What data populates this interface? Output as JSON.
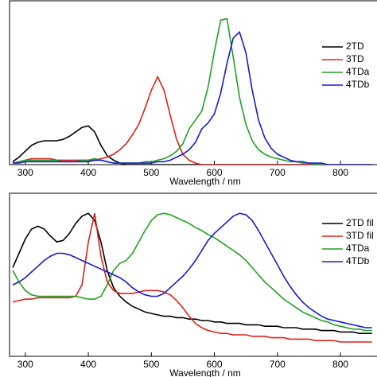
{
  "chart_data": [
    {
      "type": "line",
      "xlabel": "Wavelength / nm",
      "xlim": [
        275,
        858
      ],
      "ylim": [
        0,
        1.1
      ],
      "xticks": [
        300,
        400,
        500,
        600,
        700,
        800
      ],
      "legend": "upper right",
      "x": [
        280,
        290,
        300,
        310,
        320,
        330,
        340,
        350,
        360,
        370,
        380,
        390,
        400,
        410,
        420,
        430,
        440,
        450,
        460,
        470,
        480,
        490,
        500,
        510,
        520,
        530,
        540,
        550,
        560,
        570,
        580,
        590,
        600,
        610,
        620,
        630,
        640,
        650,
        660,
        670,
        680,
        690,
        700,
        710,
        720,
        730,
        740,
        750,
        760,
        770,
        780,
        790,
        800,
        810,
        820,
        830,
        840,
        850
      ],
      "series": [
        {
          "name": "2TD",
          "color": "#000000",
          "values": [
            0.02,
            0.05,
            0.09,
            0.13,
            0.15,
            0.16,
            0.16,
            0.16,
            0.17,
            0.19,
            0.22,
            0.25,
            0.26,
            0.22,
            0.13,
            0.06,
            0.03,
            0.01,
            0,
            0,
            0,
            0,
            0,
            0,
            0,
            0,
            0,
            0,
            0,
            0,
            0,
            0,
            0,
            0,
            0,
            0,
            0,
            0,
            0,
            0,
            0,
            0,
            0,
            0,
            0,
            0,
            0,
            0,
            0,
            0,
            0,
            0,
            0,
            0,
            0,
            0,
            0,
            0
          ]
        },
        {
          "name": "3TD",
          "color": "#e0201b",
          "values": [
            0.01,
            0.02,
            0.03,
            0.04,
            0.04,
            0.04,
            0.04,
            0.03,
            0.03,
            0.03,
            0.03,
            0.03,
            0.03,
            0.03,
            0.04,
            0.05,
            0.07,
            0.1,
            0.14,
            0.2,
            0.27,
            0.38,
            0.5,
            0.59,
            0.5,
            0.33,
            0.17,
            0.07,
            0.03,
            0.01,
            0,
            0,
            0,
            0,
            0,
            0,
            0,
            0,
            0,
            0,
            0,
            0,
            0,
            0,
            0,
            0,
            0,
            0,
            0,
            0,
            0,
            0,
            0,
            0,
            0,
            0,
            0,
            0
          ]
        },
        {
          "name": "4TDa",
          "color": "#21a121",
          "values": [
            0.01,
            0.02,
            0.03,
            0.03,
            0.03,
            0.03,
            0.03,
            0.03,
            0.02,
            0.02,
            0.02,
            0.03,
            0.03,
            0.04,
            0.03,
            0.02,
            0.01,
            0.01,
            0.01,
            0.01,
            0.01,
            0.02,
            0.02,
            0.03,
            0.04,
            0.06,
            0.09,
            0.14,
            0.24,
            0.3,
            0.36,
            0.52,
            0.76,
            0.97,
            0.98,
            0.72,
            0.45,
            0.27,
            0.16,
            0.1,
            0.07,
            0.05,
            0.04,
            0.03,
            0.02,
            0.02,
            0.01,
            0.01,
            0,
            0,
            0,
            0,
            0,
            0,
            0,
            0,
            0,
            0
          ]
        },
        {
          "name": "4TDb",
          "color": "#1818d8",
          "values": [
            0.01,
            0.01,
            0.02,
            0.02,
            0.02,
            0.02,
            0.02,
            0.02,
            0.02,
            0.02,
            0.02,
            0.02,
            0.02,
            0.03,
            0.03,
            0.02,
            0.01,
            0.01,
            0.01,
            0.01,
            0.01,
            0.01,
            0.01,
            0.02,
            0.02,
            0.03,
            0.05,
            0.07,
            0.1,
            0.15,
            0.24,
            0.28,
            0.34,
            0.48,
            0.68,
            0.85,
            0.89,
            0.75,
            0.5,
            0.3,
            0.18,
            0.11,
            0.07,
            0.05,
            0.03,
            0.02,
            0.02,
            0.01,
            0.01,
            0.01,
            0,
            0,
            0,
            0,
            0,
            0,
            0,
            0
          ]
        }
      ]
    },
    {
      "type": "line",
      "xlabel": "Wavelength / nm",
      "xlim": [
        275,
        858
      ],
      "ylim": [
        0,
        1.14
      ],
      "xticks": [
        300,
        400,
        500,
        600,
        700,
        800
      ],
      "legend": "upper right",
      "x": [
        280,
        290,
        300,
        310,
        320,
        330,
        340,
        350,
        360,
        370,
        380,
        390,
        400,
        410,
        420,
        430,
        440,
        450,
        460,
        470,
        480,
        490,
        500,
        510,
        520,
        530,
        540,
        550,
        560,
        570,
        580,
        590,
        600,
        610,
        620,
        630,
        640,
        650,
        660,
        670,
        680,
        690,
        700,
        710,
        720,
        730,
        740,
        750,
        760,
        770,
        780,
        790,
        800,
        810,
        820,
        830,
        840,
        850
      ],
      "series": [
        {
          "name": "2TD fil",
          "color": "#000000",
          "values": [
            0.62,
            0.72,
            0.82,
            0.89,
            0.91,
            0.89,
            0.84,
            0.8,
            0.81,
            0.86,
            0.93,
            0.98,
            1.0,
            0.95,
            0.8,
            0.6,
            0.48,
            0.42,
            0.38,
            0.35,
            0.33,
            0.31,
            0.3,
            0.29,
            0.28,
            0.28,
            0.27,
            0.27,
            0.26,
            0.26,
            0.25,
            0.25,
            0.24,
            0.24,
            0.23,
            0.23,
            0.23,
            0.22,
            0.22,
            0.22,
            0.21,
            0.21,
            0.21,
            0.2,
            0.2,
            0.2,
            0.19,
            0.19,
            0.19,
            0.18,
            0.18,
            0.18,
            0.17,
            0.17,
            0.17,
            0.16,
            0.16,
            0.16
          ]
        },
        {
          "name": "3TD fil",
          "color": "#e0201b",
          "values": [
            0.38,
            0.39,
            0.4,
            0.4,
            0.41,
            0.41,
            0.41,
            0.41,
            0.41,
            0.41,
            0.42,
            0.5,
            0.8,
            1.0,
            0.7,
            0.52,
            0.46,
            0.44,
            0.44,
            0.44,
            0.45,
            0.46,
            0.46,
            0.46,
            0.45,
            0.43,
            0.39,
            0.34,
            0.28,
            0.23,
            0.2,
            0.18,
            0.17,
            0.16,
            0.16,
            0.15,
            0.15,
            0.15,
            0.14,
            0.14,
            0.14,
            0.13,
            0.13,
            0.13,
            0.12,
            0.12,
            0.12,
            0.12,
            0.11,
            0.11,
            0.11,
            0.11,
            0.1,
            0.1,
            0.1,
            0.1,
            0.1,
            0.1
          ]
        },
        {
          "name": "4TDa",
          "color": "#21a121",
          "values": [
            0.6,
            0.52,
            0.46,
            0.43,
            0.42,
            0.42,
            0.42,
            0.42,
            0.42,
            0.42,
            0.42,
            0.41,
            0.4,
            0.4,
            0.42,
            0.5,
            0.6,
            0.65,
            0.67,
            0.72,
            0.8,
            0.88,
            0.95,
            0.99,
            1.0,
            0.99,
            0.97,
            0.95,
            0.93,
            0.9,
            0.88,
            0.85,
            0.83,
            0.8,
            0.77,
            0.74,
            0.71,
            0.67,
            0.62,
            0.57,
            0.52,
            0.48,
            0.44,
            0.4,
            0.37,
            0.34,
            0.31,
            0.29,
            0.27,
            0.25,
            0.24,
            0.22,
            0.21,
            0.2,
            0.19,
            0.19,
            0.18,
            0.18
          ]
        },
        {
          "name": "4TDb",
          "color": "#1818d8",
          "values": [
            0.5,
            0.52,
            0.55,
            0.59,
            0.63,
            0.67,
            0.7,
            0.72,
            0.72,
            0.71,
            0.69,
            0.67,
            0.65,
            0.63,
            0.61,
            0.59,
            0.57,
            0.55,
            0.52,
            0.48,
            0.45,
            0.43,
            0.42,
            0.42,
            0.44,
            0.48,
            0.52,
            0.56,
            0.61,
            0.67,
            0.74,
            0.81,
            0.86,
            0.9,
            0.94,
            0.98,
            1.0,
            0.99,
            0.95,
            0.88,
            0.8,
            0.72,
            0.64,
            0.56,
            0.49,
            0.43,
            0.38,
            0.34,
            0.31,
            0.28,
            0.26,
            0.25,
            0.24,
            0.23,
            0.22,
            0.21,
            0.2,
            0.2
          ]
        }
      ]
    }
  ]
}
